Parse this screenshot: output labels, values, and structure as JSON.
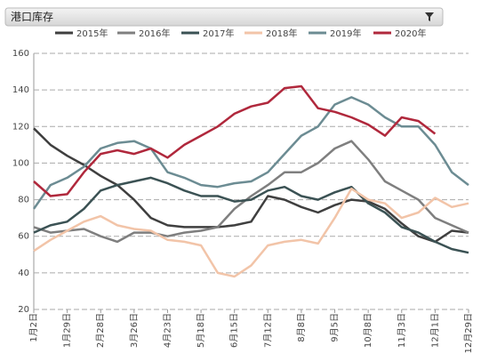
{
  "header": {
    "title": "港口库存"
  },
  "chart_data": {
    "type": "line",
    "categories": [
      "1月2日",
      null,
      "1月29日",
      null,
      "2月28日",
      null,
      "3月26日",
      null,
      "4月23日",
      null,
      "5月18日",
      null,
      "6月15日",
      null,
      "7月12日",
      null,
      "8月8日",
      null,
      "9月5日",
      null,
      "10月8日",
      null,
      "11月3日",
      null,
      "12月1日",
      null,
      "12月29日"
    ],
    "series": [
      {
        "name": "2015年",
        "color": "#3f3f3f",
        "values": [
          119,
          110,
          104,
          99,
          93,
          88,
          80,
          70,
          66,
          65,
          65,
          65,
          66,
          68,
          82,
          80,
          76,
          73,
          77,
          80,
          79,
          75,
          67,
          60,
          57,
          63,
          62
        ]
      },
      {
        "name": "2016年",
        "color": "#7f7f7f",
        "values": [
          65,
          62,
          63,
          64,
          60,
          57,
          62,
          62,
          60,
          62,
          63,
          65,
          75,
          82,
          88,
          95,
          95,
          100,
          108,
          112,
          102,
          90,
          85,
          80,
          70,
          66,
          62
        ]
      },
      {
        "name": "2017年",
        "color": "#3b5254",
        "values": [
          62,
          66,
          68,
          75,
          85,
          88,
          90,
          92,
          89,
          85,
          82,
          82,
          79,
          80,
          85,
          87,
          82,
          80,
          84,
          87,
          78,
          73,
          65,
          62,
          57,
          53,
          51
        ]
      },
      {
        "name": "2018年",
        "color": "#f2c4a8",
        "values": [
          52,
          58,
          63,
          68,
          71,
          66,
          64,
          63,
          58,
          57,
          55,
          40,
          38,
          44,
          55,
          57,
          58,
          56,
          70,
          86,
          80,
          78,
          70,
          73,
          81,
          76,
          78
        ]
      },
      {
        "name": "2019年",
        "color": "#6c8c93",
        "values": [
          75,
          88,
          92,
          98,
          108,
          111,
          112,
          108,
          95,
          92,
          88,
          87,
          89,
          90,
          95,
          105,
          115,
          120,
          132,
          136,
          132,
          125,
          120,
          120,
          110,
          95,
          88
        ]
      },
      {
        "name": "2020年",
        "color": "#b0283c",
        "values": [
          90,
          82,
          83,
          95,
          105,
          107,
          105,
          108,
          103,
          110,
          115,
          120,
          127,
          131,
          133,
          141,
          142,
          130,
          128,
          125,
          121,
          115,
          125,
          123,
          116,
          null,
          null
        ]
      }
    ],
    "ylim": [
      20,
      160
    ],
    "yticks": [
      20,
      40,
      60,
      80,
      100,
      120,
      140,
      160
    ],
    "grid": true
  }
}
